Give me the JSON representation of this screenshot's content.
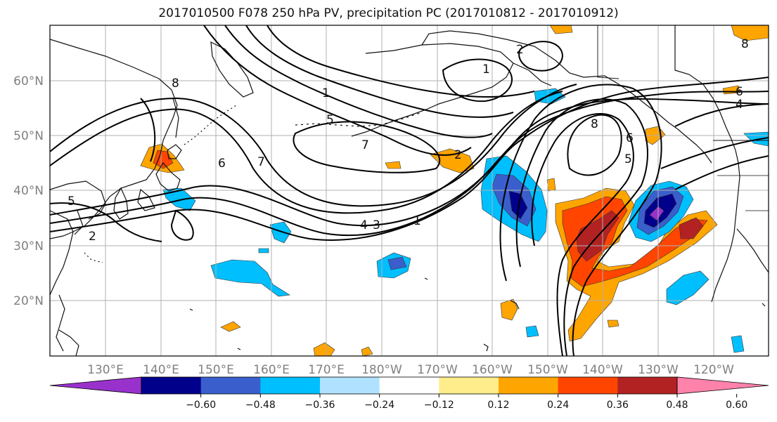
{
  "title": "2017010500 F078 250 hPa PV, precipitation PC (2017010812 - 2017010912)",
  "lat_labels": [
    "60°N",
    "50°N",
    "40°N",
    "30°N",
    "20°N"
  ],
  "lon_labels": [
    "130°E",
    "140°E",
    "150°E",
    "160°E",
    "170°E",
    "180°W",
    "170°W",
    "160°W",
    "150°W",
    "140°W",
    "130°W",
    "120°W"
  ],
  "contour_labels": [
    "8",
    "6",
    "7",
    "1",
    "5",
    "2",
    "5",
    "2",
    "4",
    "3",
    "1",
    "1",
    "2",
    "8",
    "7",
    "6",
    "5",
    "6",
    "4",
    "8"
  ],
  "colorbar": {
    "ticks": [
      "−0.60",
      "−0.48",
      "−0.36",
      "−0.24",
      "−0.12",
      "0.12",
      "0.24",
      "0.36",
      "0.48",
      "0.60"
    ],
    "colors": [
      "#9932CC",
      "#00008B",
      "#3A5FCD",
      "#00BFFF",
      "#B0E2FF",
      "#FFFFFF",
      "#FFEC8B",
      "#FFA500",
      "#FF4500",
      "#B22222",
      "#FF82AB"
    ]
  }
}
